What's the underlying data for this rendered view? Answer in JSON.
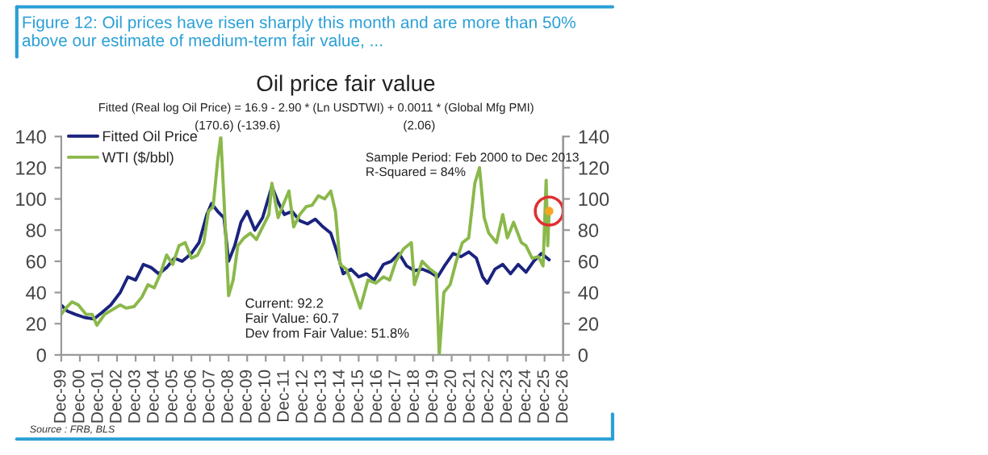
{
  "chart_data": {
    "type": "line",
    "title": "Oil price fair value",
    "subtitle": "Fitted (Real log Oil Price) = 16.9 - 2.90 * (Ln USDTWI) + 0.0011 * (Global Mfg PMI)",
    "annotations": [
      "Figure 12: Oil prices have risen sharply this month and are more than 50%\nabove our estimate of medium-term fair value, ...",
      "(170.6) (-139.6)",
      "(2.06)",
      "Sample Period: Feb 2000 to Dec 2013\nR-Squared = 84%",
      "Current: 92.2\nFair Value: 60.7\nDev from Fair Value: 51.8%",
      "Source : FRB, BLS"
    ],
    "series": [
      {
        "name": "Fitted Oil Price",
        "color": "#1a237e",
        "x": [
          "1999-12",
          "2000-04",
          "2000-09",
          "2001-03",
          "2001-09",
          "2002-02",
          "2002-08",
          "2003-02",
          "2003-07",
          "2003-12",
          "2004-05",
          "2004-10",
          "2005-03",
          "2005-08",
          "2006-01",
          "2006-06",
          "2006-12",
          "2007-05",
          "2007-10",
          "2008-01",
          "2008-05",
          "2008-09",
          "2008-12",
          "2009-04",
          "2009-08",
          "2009-12",
          "2010-05",
          "2010-10",
          "2011-04",
          "2011-08",
          "2011-12",
          "2012-05",
          "2012-10",
          "2013-03",
          "2013-08",
          "2014-01",
          "2014-06",
          "2014-10",
          "2015-02",
          "2015-07",
          "2015-12",
          "2016-05",
          "2016-10",
          "2017-04",
          "2017-09",
          "2018-02",
          "2018-07",
          "2018-12",
          "2019-05",
          "2019-10",
          "2020-03",
          "2020-08",
          "2021-01",
          "2021-06",
          "2021-11",
          "2022-04",
          "2022-08",
          "2022-11",
          "2023-04",
          "2023-09",
          "2024-02",
          "2024-07",
          "2024-12",
          "2025-05",
          "2025-10",
          "2026-03"
        ],
        "values": [
          32,
          28,
          26,
          24,
          23,
          27,
          32,
          40,
          50,
          48,
          58,
          56,
          52,
          56,
          62,
          60,
          65,
          72,
          90,
          97,
          92,
          88,
          60,
          70,
          85,
          92,
          80,
          88,
          108,
          98,
          90,
          92,
          86,
          84,
          87,
          82,
          78,
          66,
          52,
          55,
          50,
          52,
          48,
          58,
          60,
          65,
          57,
          54,
          55,
          53,
          50,
          58,
          65,
          63,
          66,
          62,
          50,
          46,
          55,
          58,
          52,
          58,
          53,
          60,
          65,
          61
        ]
      },
      {
        "name": "WTI ($/bbl)",
        "color": "#8ab84a",
        "x": [
          "1999-12",
          "2000-03",
          "2000-07",
          "2000-11",
          "2001-04",
          "2001-08",
          "2001-11",
          "2002-04",
          "2002-09",
          "2003-02",
          "2003-06",
          "2003-11",
          "2004-04",
          "2004-08",
          "2004-12",
          "2005-04",
          "2005-08",
          "2005-12",
          "2006-04",
          "2006-08",
          "2006-12",
          "2007-04",
          "2007-08",
          "2007-11",
          "2008-02",
          "2008-05",
          "2008-07",
          "2008-09",
          "2008-12",
          "2009-03",
          "2009-06",
          "2009-10",
          "2010-02",
          "2010-06",
          "2010-10",
          "2011-02",
          "2011-04",
          "2011-08",
          "2011-12",
          "2012-03",
          "2012-06",
          "2012-10",
          "2013-02",
          "2013-06",
          "2013-10",
          "2014-02",
          "2014-06",
          "2014-09",
          "2014-12",
          "2015-04",
          "2015-08",
          "2016-01",
          "2016-06",
          "2016-11",
          "2017-04",
          "2017-08",
          "2017-12",
          "2018-05",
          "2018-10",
          "2018-12",
          "2019-05",
          "2019-10",
          "2020-02",
          "2020-04",
          "2020-07",
          "2020-11",
          "2021-03",
          "2021-07",
          "2021-11",
          "2022-03",
          "2022-06",
          "2022-09",
          "2022-12",
          "2023-05",
          "2023-09",
          "2023-12",
          "2024-04",
          "2024-09",
          "2024-12",
          "2025-04",
          "2025-08",
          "2025-11",
          "2026-01",
          "2026-02",
          "2026-03"
        ],
        "values": [
          26,
          30,
          34,
          32,
          26,
          26,
          19,
          26,
          29,
          32,
          30,
          31,
          37,
          45,
          43,
          52,
          64,
          58,
          70,
          72,
          62,
          64,
          72,
          92,
          95,
          125,
          140,
          100,
          38,
          48,
          70,
          75,
          78,
          74,
          82,
          90,
          110,
          88,
          98,
          105,
          82,
          90,
          95,
          96,
          102,
          100,
          105,
          92,
          58,
          55,
          45,
          30,
          48,
          46,
          50,
          48,
          60,
          68,
          72,
          45,
          60,
          55,
          52,
          0,
          40,
          45,
          60,
          72,
          75,
          110,
          120,
          88,
          78,
          72,
          90,
          75,
          85,
          72,
          70,
          62,
          63,
          57,
          112,
          70,
          92.2
        ]
      }
    ],
    "xlim": [
      "1999-12",
      "2026-12"
    ],
    "xticks": [
      {
        "value": "1999-12",
        "label": "Dec-99"
      },
      {
        "value": "2000-12",
        "label": "Dec-00"
      },
      {
        "value": "2001-12",
        "label": "Dec-01"
      },
      {
        "value": "2002-12",
        "label": "Dec-02"
      },
      {
        "value": "2003-12",
        "label": "Dec-03"
      },
      {
        "value": "2004-12",
        "label": "Dec-04"
      },
      {
        "value": "2005-12",
        "label": "Dec-05"
      },
      {
        "value": "2006-12",
        "label": "Dec-06"
      },
      {
        "value": "2007-12",
        "label": "Dec-07"
      },
      {
        "value": "2008-12",
        "label": "Dec-08"
      },
      {
        "value": "2009-12",
        "label": "Dec-09"
      },
      {
        "value": "2010-12",
        "label": "Dec-10"
      },
      {
        "value": "2011-12",
        "label": "Dec-11"
      },
      {
        "value": "2012-12",
        "label": "Dec-12"
      },
      {
        "value": "2013-12",
        "label": "Dec-13"
      },
      {
        "value": "2014-12",
        "label": "Dec-14"
      },
      {
        "value": "2015-12",
        "label": "Dec-15"
      },
      {
        "value": "2016-12",
        "label": "Dec-16"
      },
      {
        "value": "2017-12",
        "label": "Dec-17"
      },
      {
        "value": "2018-12",
        "label": "Dec-18"
      },
      {
        "value": "2019-12",
        "label": "Dec-19"
      },
      {
        "value": "2020-12",
        "label": "Dec-20"
      },
      {
        "value": "2021-12",
        "label": "Dec-21"
      },
      {
        "value": "2022-12",
        "label": "Dec-22"
      },
      {
        "value": "2023-12",
        "label": "Dec-23"
      },
      {
        "value": "2024-12",
        "label": "Dec-24"
      },
      {
        "value": "2025-12",
        "label": "Dec-25"
      },
      {
        "value": "2026-12",
        "label": "Dec-26"
      }
    ],
    "ylim": [
      0,
      140
    ],
    "yticks": [
      0,
      20,
      40,
      60,
      80,
      100,
      120,
      140
    ],
    "y2lim": [
      0,
      140
    ],
    "y2ticks": [
      0,
      20,
      40,
      60,
      80,
      100,
      120,
      140
    ],
    "legend": "top left",
    "grid": false
  }
}
